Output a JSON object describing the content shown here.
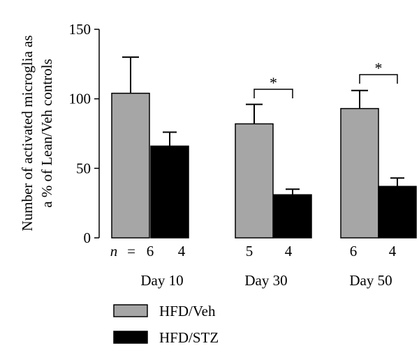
{
  "chart_data": {
    "type": "bar",
    "ylabel_lines": [
      "Number of activated microglia as",
      "a % of Lean/Veh controls"
    ],
    "ylim": [
      0,
      150
    ],
    "yticks": [
      0,
      50,
      100,
      150
    ],
    "grid": false,
    "legend_position": "bottom-left",
    "n_prefix": "n",
    "n_sep": "=",
    "categories": [
      "Day 10",
      "Day 30",
      "Day 50"
    ],
    "series": [
      {
        "name": "HFD/Veh",
        "color": "#a6a6a6",
        "values": [
          104,
          82,
          93
        ],
        "error": [
          26,
          14,
          13
        ],
        "n": [
          "6",
          "5",
          "6"
        ]
      },
      {
        "name": "HFD/STZ",
        "color": "#000000",
        "values": [
          66,
          31,
          37
        ],
        "error": [
          10,
          4,
          6
        ],
        "n": [
          "4",
          "4",
          "4"
        ]
      }
    ],
    "significance": [
      {
        "category_index": 1,
        "label": "*"
      },
      {
        "category_index": 2,
        "label": "*"
      }
    ]
  }
}
